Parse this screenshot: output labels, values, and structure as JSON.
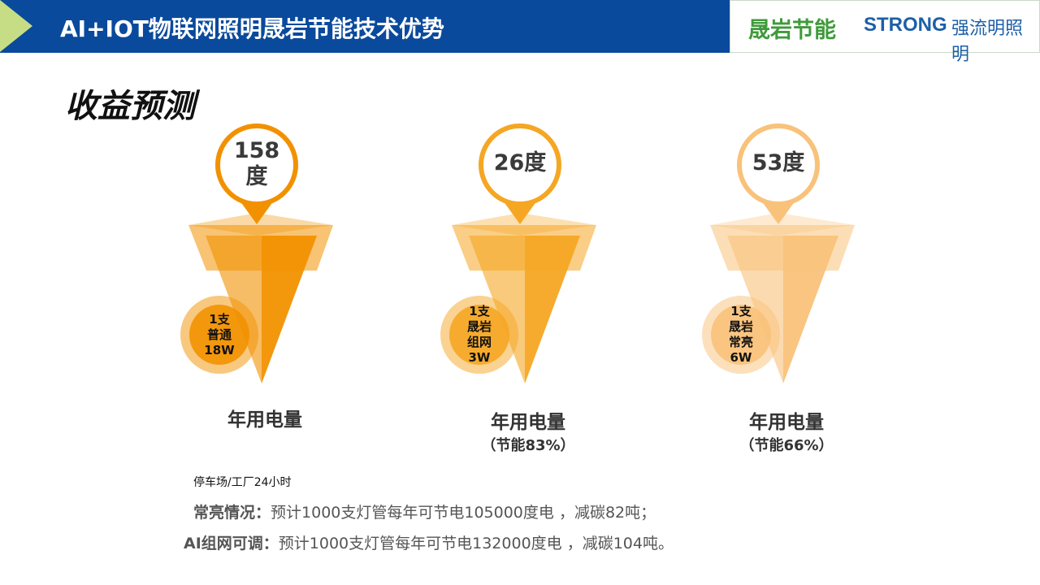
{
  "header": {
    "title": "AI+IOT物联网照明晟岩节能技术优势"
  },
  "logo": {
    "brand_cn": "晟岩节能",
    "brand_en": "STRONG",
    "brand_en_tag": "强流明照明"
  },
  "subtitle": "收益预测",
  "funnels": [
    {
      "value_line1": "158",
      "value_line2": "度",
      "lamp": [
        "1支",
        "普通",
        "18W"
      ],
      "label": "年用电量",
      "saving": "",
      "color": "#f29100"
    },
    {
      "value_line1": "26度",
      "value_line2": "",
      "lamp": [
        "1支",
        "晟岩",
        "组网",
        "3W"
      ],
      "label": "年用电量",
      "saving": "（节能83%）",
      "color": "#f5a623"
    },
    {
      "value_line1": "53度",
      "value_line2": "",
      "lamp": [
        "1支",
        "晟岩",
        "常亮",
        "6W"
      ],
      "label": "年用电量",
      "saving": "（节能66%）",
      "color": "#f9c27a"
    }
  ],
  "notes": {
    "scenario": "停车场/工厂24小时",
    "line1_label": "常亮情况：",
    "line1_text": "预计1000支灯管每年可节电105000度电 ，减碳82吨；",
    "line2_label": "AI组网可调：",
    "line2_text": "预计1000支灯管每年可节电132000度电 ，减碳104吨。"
  }
}
